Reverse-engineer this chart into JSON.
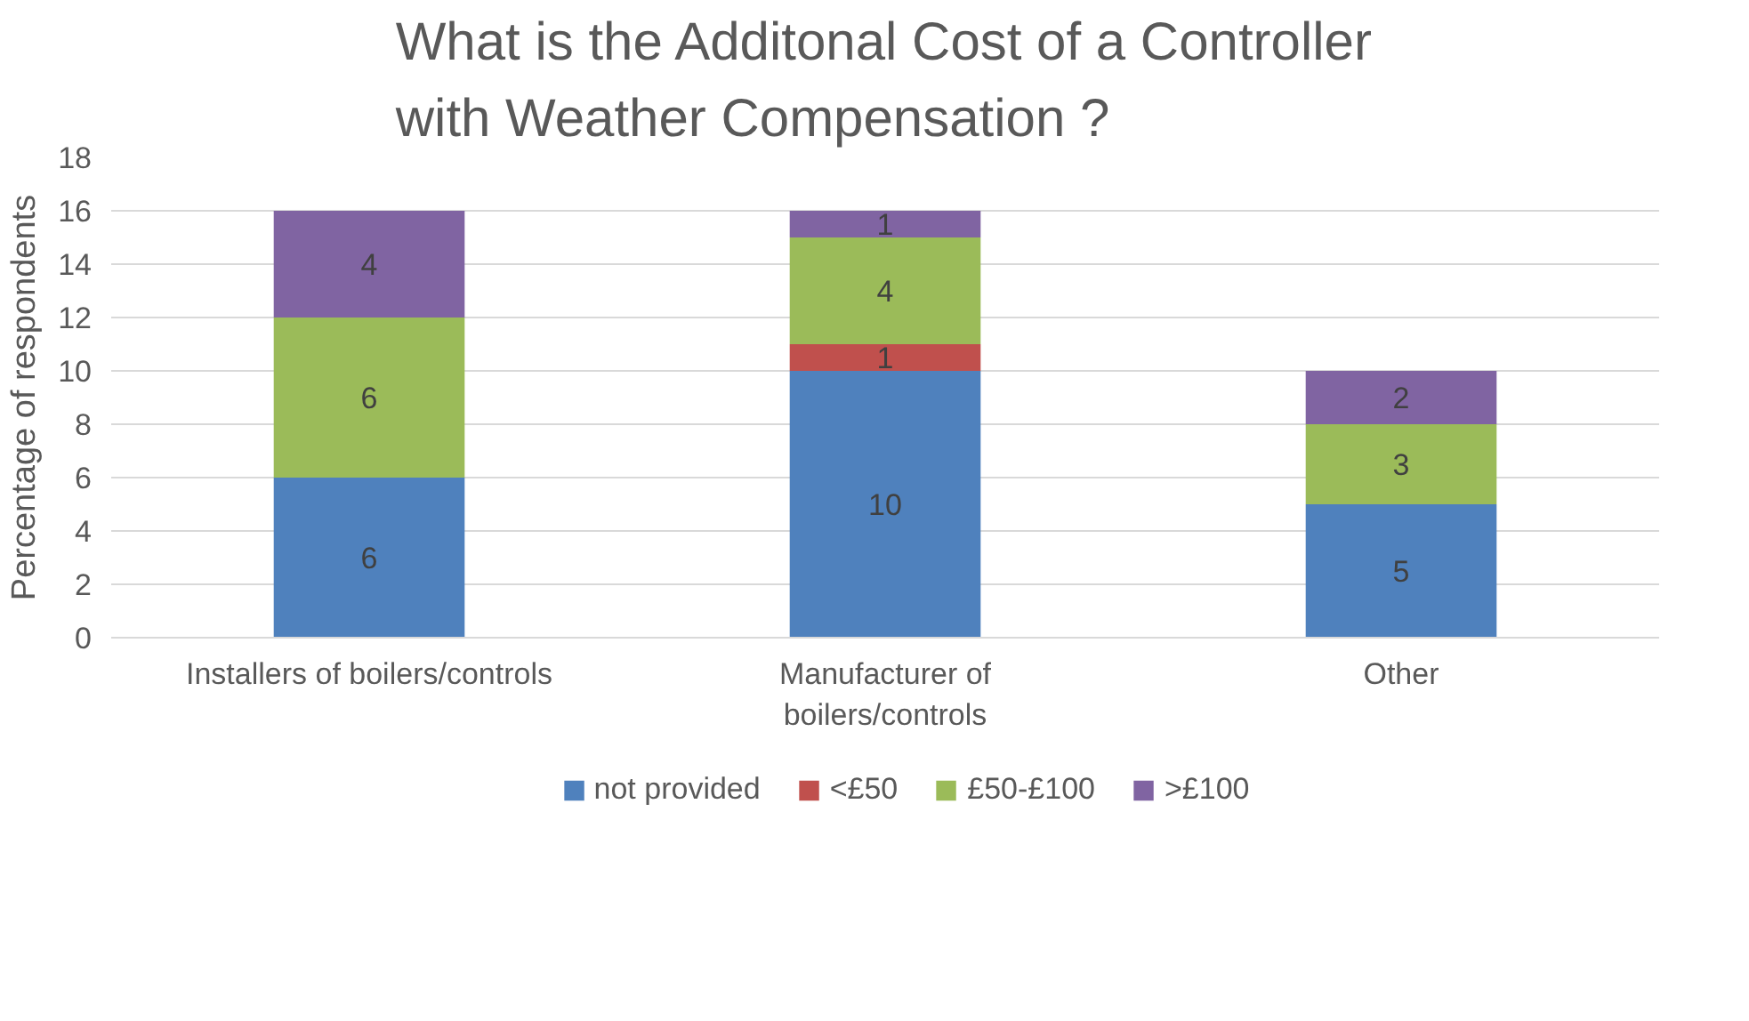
{
  "chart_data": {
    "type": "bar",
    "stacked": true,
    "title": "What is the Additonal Cost of a Controller with Weather Compensation ?",
    "ylabel": "Percentage of respondents",
    "categories": [
      "Installers of boilers/controls",
      "Manufacturer of boilers/controls",
      "Other"
    ],
    "series": [
      {
        "name": "not provided",
        "color": "#4f81bd",
        "values": [
          6,
          10,
          5
        ]
      },
      {
        "name": "<£50",
        "color": "#c0504d",
        "values": [
          null,
          1,
          null
        ]
      },
      {
        "name": "£50-£100",
        "color": "#9bbb59",
        "values": [
          6,
          4,
          3
        ]
      },
      {
        "name": ">£100",
        "color": "#8064a2",
        "values": [
          4,
          1,
          2
        ]
      }
    ],
    "ylim": [
      0,
      18
    ],
    "yticks": [
      0,
      2,
      4,
      6,
      8,
      10,
      12,
      14,
      16,
      18
    ],
    "grid": "y",
    "legend": "bottom",
    "data_labels": true
  }
}
